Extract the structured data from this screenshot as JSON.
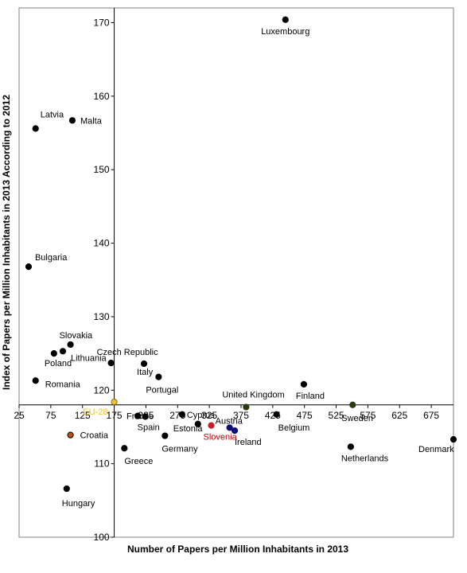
{
  "chart_data": {
    "type": "scatter",
    "xlabel": "Number of Papers per Million Inhabitants in 2013",
    "ylabel": "Index of Papers per Million Inhabitants in 2013 According to 2012",
    "xlim": [
      25,
      710
    ],
    "ylim": [
      100,
      172
    ],
    "x_ticks": [
      "25",
      "75",
      "125",
      "175",
      "225",
      "275",
      "325",
      "375",
      "425",
      "475",
      "525",
      "575",
      "625",
      "675"
    ],
    "y_ticks": [
      "100",
      "110",
      "120",
      "130",
      "140",
      "150",
      "160",
      "170"
    ],
    "x_axis_crosses_at_y": 118,
    "y_axis_crosses_at_x": 175,
    "points": [
      {
        "name": "Luxembourg",
        "x": 445,
        "y": 170.4,
        "color": "#000000"
      },
      {
        "name": "Latvia",
        "x": 51,
        "y": 155.6,
        "color": "#000000"
      },
      {
        "name": "Malta",
        "x": 109,
        "y": 156.7,
        "color": "#000000"
      },
      {
        "name": "Bulgaria",
        "x": 40,
        "y": 136.8,
        "color": "#000000"
      },
      {
        "name": "Slovakia",
        "x": 106,
        "y": 126.2,
        "color": "#000000"
      },
      {
        "name": "Lithuania",
        "x": 94,
        "y": 125.3,
        "color": "#000000"
      },
      {
        "name": "Poland",
        "x": 80,
        "y": 125.0,
        "color": "#000000"
      },
      {
        "name": "Romania",
        "x": 51,
        "y": 121.3,
        "color": "#000000"
      },
      {
        "name": "Czech Republic",
        "x": 170,
        "y": 123.7,
        "color": "#000000"
      },
      {
        "name": "Italy",
        "x": 222,
        "y": 123.6,
        "color": "#000000"
      },
      {
        "name": "Portugal",
        "x": 245,
        "y": 121.8,
        "color": "#000000"
      },
      {
        "name": "Finland",
        "x": 474,
        "y": 120.8,
        "color": "#000000"
      },
      {
        "name": "United Kingdom",
        "x": 383,
        "y": 117.7,
        "color": "#2b3a14"
      },
      {
        "name": "Sweden",
        "x": 551,
        "y": 118.0,
        "color": "#2b3a14"
      },
      {
        "name": "EU-28",
        "x": 175,
        "y": 118.4,
        "color": "#f2c230"
      },
      {
        "name": "France",
        "x": 212,
        "y": 116.5,
        "color": "#000000"
      },
      {
        "name": "Spain",
        "x": 224,
        "y": 116.4,
        "color": "#000000"
      },
      {
        "name": "Cyprus",
        "x": 282,
        "y": 116.7,
        "color": "#000000"
      },
      {
        "name": "Estonia",
        "x": 307,
        "y": 115.4,
        "color": "#000000"
      },
      {
        "name": "Austria",
        "x": 357,
        "y": 114.9,
        "color": "#0d0d7a"
      },
      {
        "name": "Ireland",
        "x": 365,
        "y": 114.5,
        "color": "#0d0d7a"
      },
      {
        "name": "Slovenia",
        "x": 328,
        "y": 115.2,
        "color": "#c0202a"
      },
      {
        "name": "Belgium",
        "x": 431,
        "y": 116.7,
        "color": "#000000"
      },
      {
        "name": "Croatia",
        "x": 106,
        "y": 113.9,
        "color": "#b5521c"
      },
      {
        "name": "Germany",
        "x": 255,
        "y": 113.8,
        "color": "#000000"
      },
      {
        "name": "Greece",
        "x": 191,
        "y": 112.1,
        "color": "#000000"
      },
      {
        "name": "Netherlands",
        "x": 548,
        "y": 112.3,
        "color": "#000000"
      },
      {
        "name": "Denmark",
        "x": 710,
        "y": 113.3,
        "color": "#000000"
      },
      {
        "name": "Hungary",
        "x": 100,
        "y": 106.6,
        "color": "#000000"
      }
    ],
    "label_colors": {
      "Slovenia": "#c00000",
      "EU-28": "#f2c230"
    },
    "grid": false
  }
}
